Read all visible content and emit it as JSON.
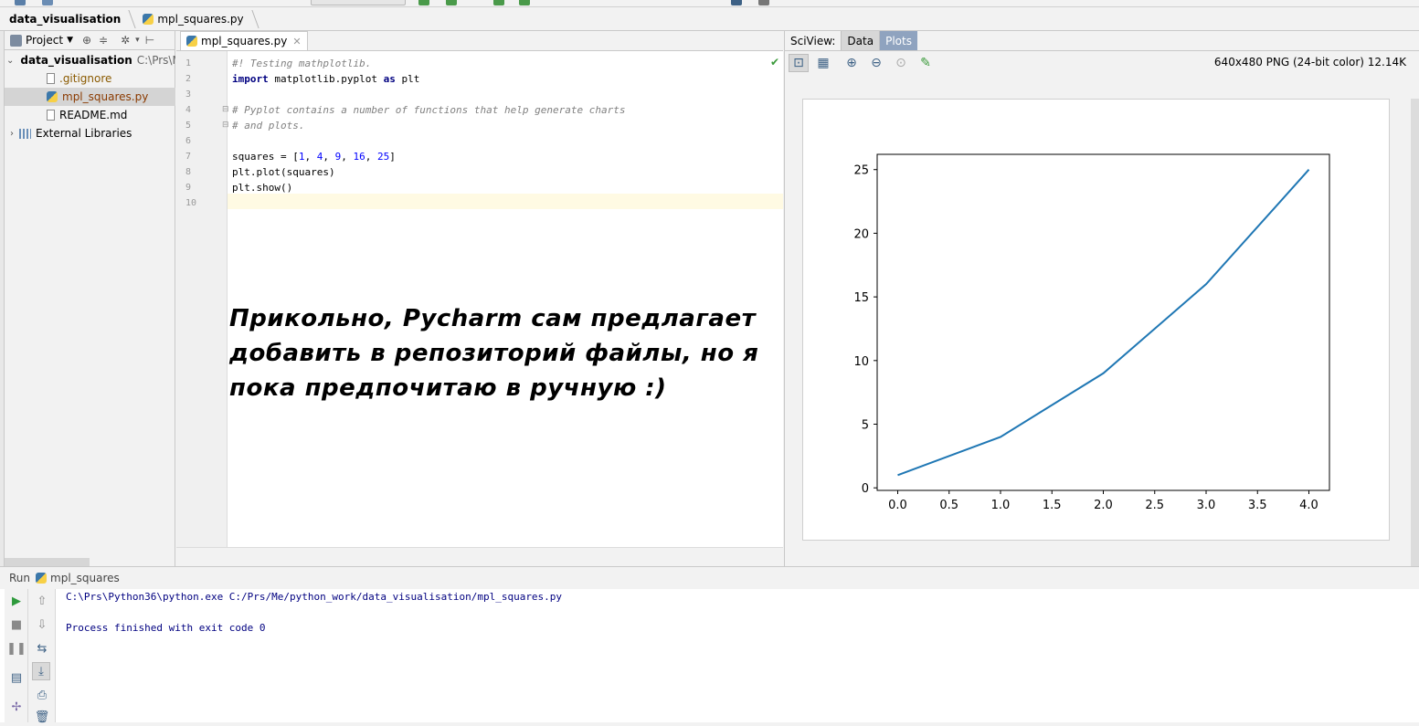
{
  "breadcrumb": {
    "project": "data_visualisation",
    "file": "mpl_squares.py"
  },
  "project_panel": {
    "title": "Project",
    "tree": [
      {
        "label": "data_visualisation",
        "path": "C:\\Prs\\M"
      },
      {
        "label": ".gitignore"
      },
      {
        "label": "mpl_squares.py"
      },
      {
        "label": "README.md"
      },
      {
        "label": "External Libraries"
      }
    ]
  },
  "editor": {
    "tab": "mpl_squares.py",
    "line_numbers": [
      "1",
      "2",
      "3",
      "4",
      "5",
      "6",
      "7",
      "8",
      "9",
      "10"
    ],
    "lines": [
      "#! Testing mathplotlib.",
      "import matplotlib.pyplot as plt",
      "",
      "# Pyplot contains a number of functions that help generate charts",
      "# and plots.",
      "",
      "squares = [1, 4, 9, 16, 25]",
      "plt.plot(squares)",
      "plt.show()",
      ""
    ],
    "note": [
      "Прикольно, Pycharm сам предлагает",
      "добавить в репозиторий файлы, но я",
      "пока предпочитаю в ручную :)"
    ]
  },
  "sciview": {
    "label": "SciView:",
    "tab_data": "Data",
    "tab_plots": "Plots",
    "image_info": "640x480 PNG (24-bit color) 12.14K"
  },
  "chart_data": {
    "type": "line",
    "x": [
      0,
      1,
      2,
      3,
      4
    ],
    "series": [
      {
        "values": [
          1,
          4,
          9,
          16,
          25
        ],
        "color": "#1f77b4"
      }
    ],
    "xlim": [
      -0.2,
      4.2
    ],
    "ylim": [
      -0.2,
      26.2
    ],
    "xticks": [
      "0.0",
      "0.5",
      "1.0",
      "1.5",
      "2.0",
      "2.5",
      "3.0",
      "3.5",
      "4.0"
    ],
    "yticks": [
      "0",
      "5",
      "10",
      "15",
      "20",
      "25"
    ],
    "title": "",
    "xlabel": "",
    "ylabel": "",
    "grid": false
  },
  "run": {
    "label": "Run",
    "config": "mpl_squares",
    "output": [
      "C:\\Prs\\Python36\\python.exe C:/Prs/Me/python_work/data_visualisation/mpl_squares.py",
      "",
      "Process finished with exit code 0"
    ]
  },
  "colors": {
    "accent": "#8fa3bf",
    "line": "#1f77b4",
    "run_green": "#2e9a3c"
  }
}
